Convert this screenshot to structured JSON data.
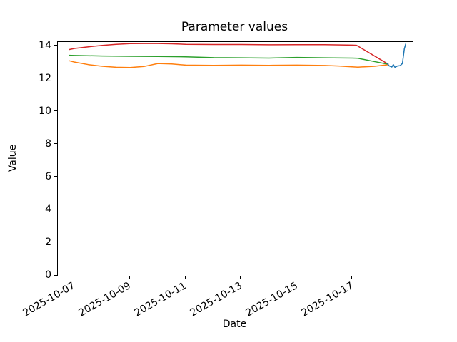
{
  "title": "Parameter values",
  "axes": {
    "xlabel": "Date",
    "ylabel": "Value"
  },
  "chart_data": {
    "type": "line",
    "title": "Parameter values",
    "xlabel": "Date",
    "ylabel": "Value",
    "grid": false,
    "legend": "none",
    "x_unit": "days offset from 2025-10-07",
    "x_tick_labels": [
      "2025-10-07",
      "2025-10-09",
      "2025-10-11",
      "2025-10-13",
      "2025-10-15",
      "2025-10-17"
    ],
    "x_tick_days": [
      0,
      2,
      4,
      6,
      8,
      10
    ],
    "y_tick_labels": [
      "0",
      "2",
      "4",
      "6",
      "8",
      "10",
      "12",
      "14"
    ],
    "y_ticks": [
      0,
      2,
      4,
      6,
      8,
      10,
      12,
      14
    ],
    "xlim_days": [
      -0.6,
      12.17
    ],
    "ylim": [
      0,
      14.26
    ],
    "series": [
      {
        "name": "red",
        "color": "#d62728",
        "points": [
          [
            -0.2,
            13.8
          ],
          [
            0,
            13.87
          ],
          [
            0.5,
            13.97
          ],
          [
            1,
            14.05
          ],
          [
            1.5,
            14.12
          ],
          [
            2,
            14.16
          ],
          [
            2.5,
            14.17
          ],
          [
            3,
            14.17
          ],
          [
            3.5,
            14.15
          ],
          [
            4,
            14.12
          ],
          [
            5,
            14.11
          ],
          [
            6,
            14.11
          ],
          [
            7,
            14.09
          ],
          [
            8,
            14.1
          ],
          [
            9,
            14.1
          ],
          [
            10,
            14.07
          ],
          [
            10.15,
            14.06
          ],
          [
            11.3,
            12.9
          ]
        ]
      },
      {
        "name": "green",
        "color": "#2ca02c",
        "points": [
          [
            -0.2,
            13.45
          ],
          [
            0,
            13.44
          ],
          [
            1,
            13.41
          ],
          [
            2,
            13.39
          ],
          [
            3,
            13.38
          ],
          [
            4,
            13.36
          ],
          [
            5,
            13.31
          ],
          [
            6,
            13.3
          ],
          [
            7,
            13.28
          ],
          [
            8,
            13.32
          ],
          [
            9,
            13.3
          ],
          [
            10,
            13.28
          ],
          [
            10.2,
            13.27
          ],
          [
            11.3,
            12.9
          ]
        ]
      },
      {
        "name": "orange",
        "color": "#ff7f0e",
        "points": [
          [
            -0.2,
            13.12
          ],
          [
            0,
            13.04
          ],
          [
            0.5,
            12.88
          ],
          [
            1,
            12.78
          ],
          [
            1.5,
            12.72
          ],
          [
            2,
            12.71
          ],
          [
            2.5,
            12.77
          ],
          [
            3,
            12.95
          ],
          [
            3.5,
            12.92
          ],
          [
            4,
            12.85
          ],
          [
            5,
            12.84
          ],
          [
            6,
            12.85
          ],
          [
            7,
            12.84
          ],
          [
            8,
            12.85
          ],
          [
            9,
            12.83
          ],
          [
            9.5,
            12.8
          ],
          [
            10.2,
            12.73
          ],
          [
            10.8,
            12.78
          ],
          [
            11.3,
            12.88
          ]
        ]
      },
      {
        "name": "blue",
        "color": "#1f77b4",
        "points": [
          [
            11.25,
            12.95
          ],
          [
            11.33,
            12.8
          ],
          [
            11.42,
            12.74
          ],
          [
            11.47,
            12.88
          ],
          [
            11.53,
            12.72
          ],
          [
            11.62,
            12.8
          ],
          [
            11.72,
            12.82
          ],
          [
            11.8,
            12.95
          ],
          [
            11.87,
            13.85
          ],
          [
            11.92,
            14.15
          ]
        ]
      }
    ]
  }
}
